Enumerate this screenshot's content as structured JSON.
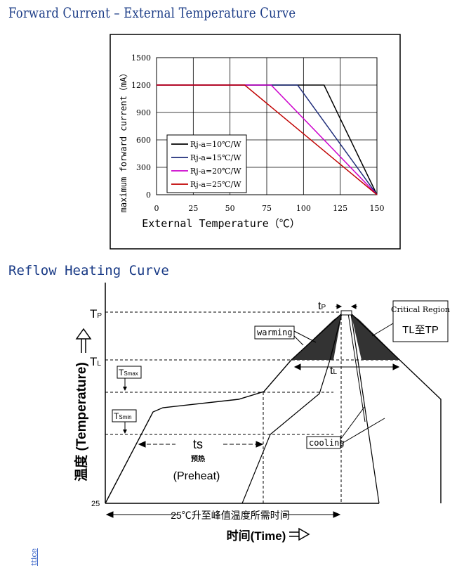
{
  "section1": {
    "title": "Forward Current – External Temperature Curve"
  },
  "chart_data": {
    "type": "line",
    "xlabel": "External Temperature（℃）",
    "ylabel": "maximum forward current（mA）",
    "xlim": [
      0,
      150
    ],
    "ylim": [
      0,
      1500
    ],
    "x_ticks": [
      "0",
      "25",
      "50",
      "75",
      "100",
      "125",
      "150"
    ],
    "y_ticks": [
      "0",
      "300",
      "600",
      "900",
      "1200",
      "1500"
    ],
    "grid": true,
    "legend_position": "bottom-left",
    "series": [
      {
        "name": "Rj-a=10℃/W",
        "color": "#000000",
        "points": [
          [
            0,
            1200
          ],
          [
            114,
            1200
          ],
          [
            150,
            0
          ]
        ]
      },
      {
        "name": "Rj-a=15℃/W",
        "color": "#1f2d7a",
        "points": [
          [
            0,
            1200
          ],
          [
            96,
            1200
          ],
          [
            150,
            0
          ]
        ]
      },
      {
        "name": "Rj-a=20℃/W",
        "color": "#cc00cc",
        "points": [
          [
            0,
            1200
          ],
          [
            78,
            1200
          ],
          [
            150,
            0
          ]
        ]
      },
      {
        "name": "Rj-a=25℃/W",
        "color": "#c00000",
        "points": [
          [
            0,
            1200
          ],
          [
            60,
            1200
          ],
          [
            150,
            0
          ]
        ]
      }
    ]
  },
  "section2": {
    "title": "Reflow Heating Curve"
  },
  "reflow": {
    "tp_level": "T",
    "tp_sub": "P",
    "tl_level": "T",
    "tl_sub": "L",
    "tsmax": "T",
    "tsmax_sub": "Smax",
    "tsmin": "T",
    "tsmin_sub": "Smin",
    "t25": "25",
    "tp_time": "t",
    "tp_time_sub": "P",
    "tl_time": "t",
    "tl_time_sub": "L",
    "ts_label": "ts",
    "preheat_cn": "预热",
    "preheat_en": "(Preheat)",
    "warming": "warming",
    "cooling": "cooling",
    "critical_title": "Critical Region",
    "critical_range": "TL至TP",
    "y_axis_label_cn": "温度",
    "y_axis_label_en": "(Temperature)",
    "x_axis_label_cn": "时间",
    "x_axis_label_en": "(Time)",
    "bottom_span": "25℃升至峰值温度所需时间"
  },
  "side_link": "ttice"
}
